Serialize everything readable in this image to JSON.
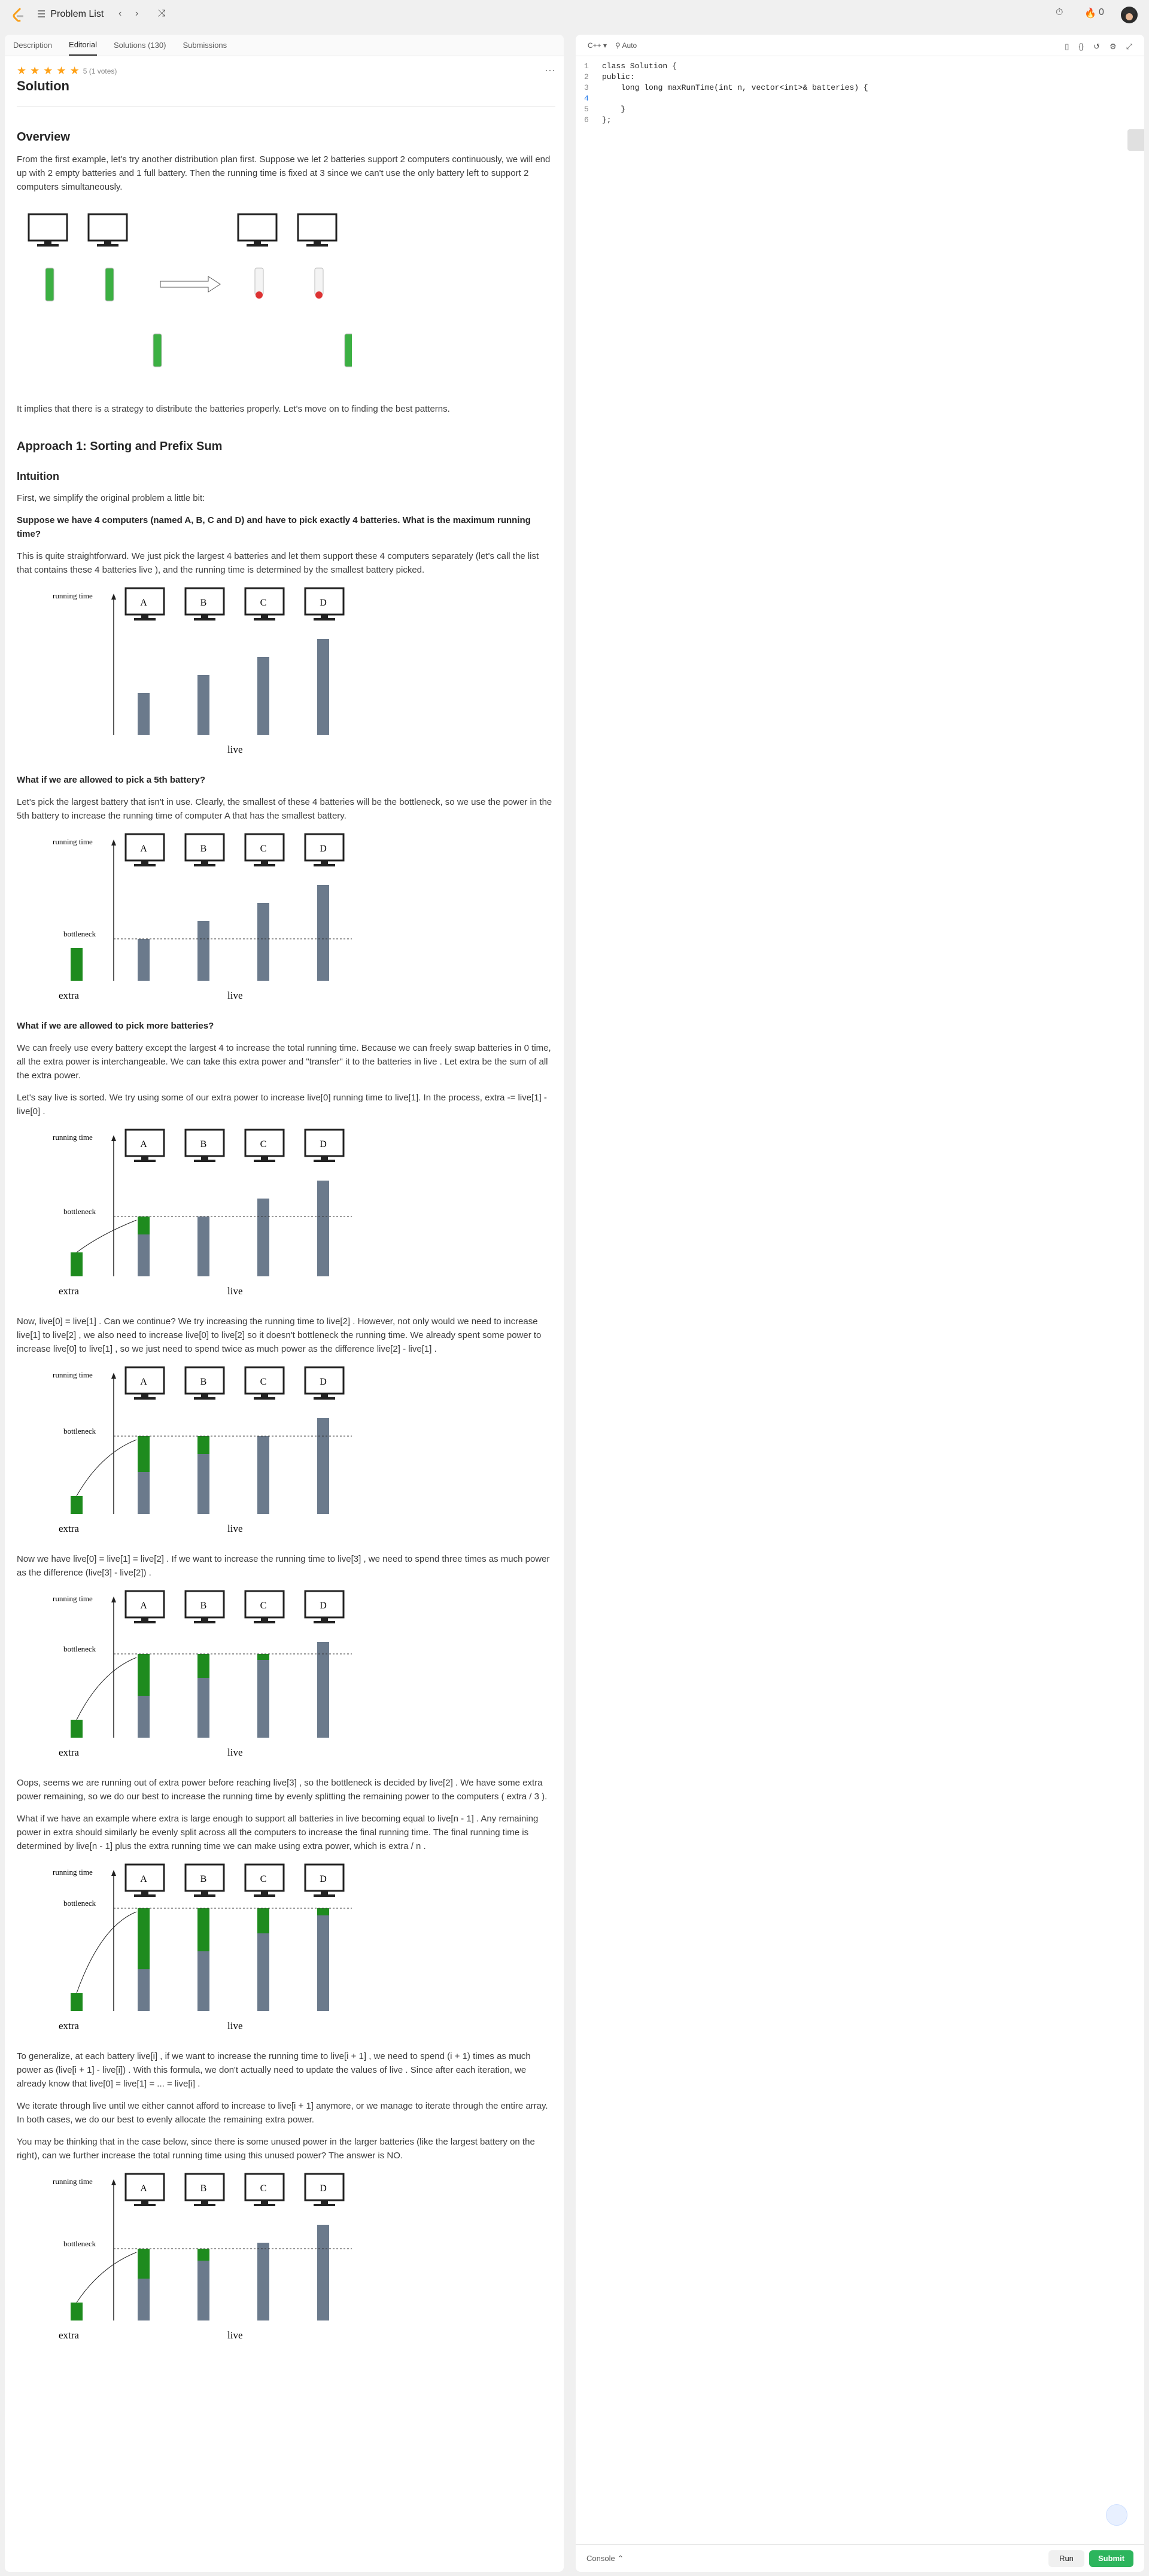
{
  "topbar": {
    "problem_list": "Problem List",
    "prev": "‹",
    "next": "›",
    "shuffle": "⤨",
    "timer": "⏱",
    "streak": "0"
  },
  "tabs": [
    "Description",
    "Editorial",
    "Solutions (130)",
    "Submissions"
  ],
  "editorial": {
    "rating": "5 (1 votes)",
    "title": "Solution",
    "overview_h": "Overview",
    "p1": "From the first example, let's try another distribution plan first. Suppose we let 2 batteries support 2 computers continuously, we will end up with 2 empty batteries and 1 full battery. Then the running time is fixed at 3 since we can't use the only battery left to support 2 computers simultaneously.",
    "p2": "It implies that there is a strategy to distribute the batteries properly. Let's move on to finding the best patterns.",
    "approach_h": "Approach 1: Sorting and Prefix Sum",
    "intuition_h": "Intuition",
    "p3": "First, we simplify the original problem a little bit:",
    "q1": "Suppose we have 4 computers (named A, B, C and D) and have to pick exactly 4 batteries. What is the maximum running time?",
    "p4": "This is quite straightforward. We just pick the largest 4 batteries and let them support these 4 computers separately (let's call the list that contains these 4 batteries live ), and the running time is determined by the smallest battery picked.",
    "q2": "What if we are allowed to pick a 5th battery?",
    "p5": "Let's pick the largest battery that isn't in use. Clearly, the smallest of these 4 batteries will be the bottleneck, so we use the power in the 5th battery to increase the running time of computer A that has the smallest battery.",
    "q3": "What if we are allowed to pick more batteries?",
    "p6": "We can freely use every battery except the largest 4 to increase the total running time. Because we can freely swap batteries in 0 time, all the extra power is interchangeable. We can take this extra power and \"transfer\" it to the batteries in live . Let extra be the sum of all the extra power.",
    "p7": "Let's say live is sorted. We try using some of our extra power to increase live[0] running time to live[1]. In the process, extra -= live[1] - live[0] .",
    "p8": "Now, live[0] = live[1] . Can we continue? We try increasing the running time to live[2] . However, not only would we need to increase live[1] to live[2] , we also need to increase live[0] to live[2] so it doesn't bottleneck the running time. We already spent some power to increase live[0] to live[1] , so we just need to spend twice as much power as the difference live[2] - live[1] .",
    "p9": "Now we have live[0] = live[1] = live[2] . If we want to increase the running time to live[3] , we need to spend three times as much power as the difference (live[3] - live[2]) .",
    "p10": "Oops, seems we are running out of extra power before reaching live[3] , so the bottleneck is decided by live[2] . We have some extra power remaining, so we do our best to increase the running time by evenly splitting the remaining power to the computers ( extra / 3 ).",
    "p11": "What if we have an example where extra is large enough to support all batteries in live becoming equal to live[n - 1] . Any remaining power in extra should similarly be evenly split across all the computers to increase the final running time. The final running time is determined by live[n - 1] plus the extra running time we can make using extra power, which is extra / n .",
    "p12": "To generalize, at each battery live[i] , if we want to increase the running time to live[i + 1] , we need to spend (i + 1) times as much power as (live[i + 1] - live[i]) . With this formula, we don't actually need to update the values of live . Since after each iteration, we already know that live[0] = live[1] = ... = live[i] .",
    "p13": "We iterate through live until we either cannot afford to increase to live[i + 1] anymore, or we manage to iterate through the entire array. In both cases, we do our best to evenly allocate the remaining extra power.",
    "p14": "You may be thinking that in the case below, since there is some unused power in the larger batteries (like the largest battery on the right), can we further increase the total running time using this unused power? The answer is NO.",
    "fig": {
      "running_time": "running time",
      "live": "live",
      "extra": "extra",
      "bottleneck": "bottleneck",
      "computers": [
        "A",
        "B",
        "C",
        "D"
      ]
    }
  },
  "editor": {
    "lang": "C++",
    "mode": "Auto",
    "lines": [
      "class Solution {",
      "public:",
      "    long long maxRunTime(int n, vector<int>& batteries) {",
      "        ",
      "    }",
      "};"
    ]
  },
  "console": {
    "label": "Console",
    "run": "Run",
    "submit": "Submit"
  }
}
